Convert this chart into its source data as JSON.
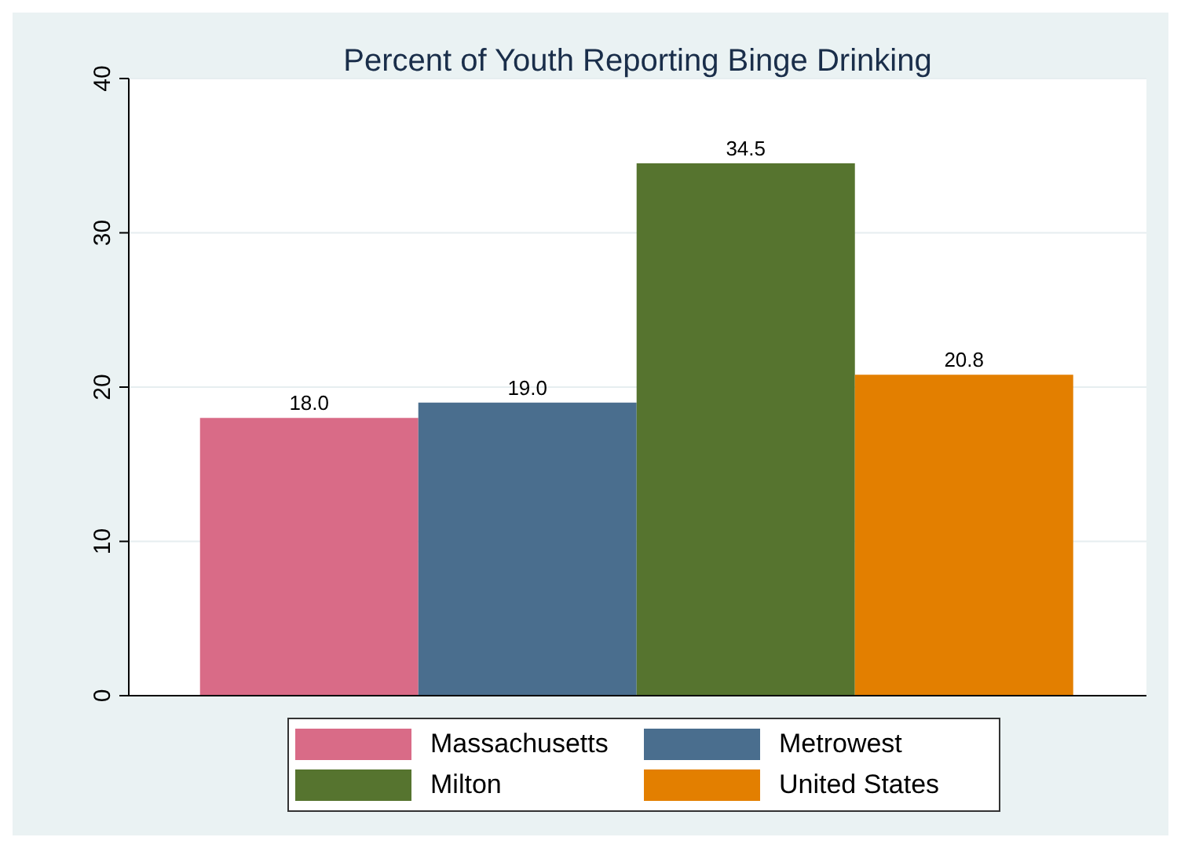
{
  "chart_data": {
    "type": "bar",
    "title": "Percent of Youth Reporting Binge Drinking",
    "categories": [
      null
    ],
    "series": [
      {
        "name": "Massachusetts",
        "color": "#d96b87",
        "values": [
          18.0
        ],
        "value_labels": [
          "18.0"
        ]
      },
      {
        "name": "Metrowest",
        "color": "#4a6e8e",
        "values": [
          19.0
        ],
        "value_labels": [
          "19.0"
        ]
      },
      {
        "name": "Milton",
        "color": "#56742f",
        "values": [
          34.5
        ],
        "value_labels": [
          "34.5"
        ]
      },
      {
        "name": "United States",
        "color": "#e37f00",
        "values": [
          20.8
        ],
        "value_labels": [
          "20.8"
        ]
      }
    ],
    "ylim": [
      0,
      40
    ],
    "yticks": [
      0,
      10,
      20,
      30,
      40
    ],
    "grid": "y",
    "legend": "bottom"
  }
}
